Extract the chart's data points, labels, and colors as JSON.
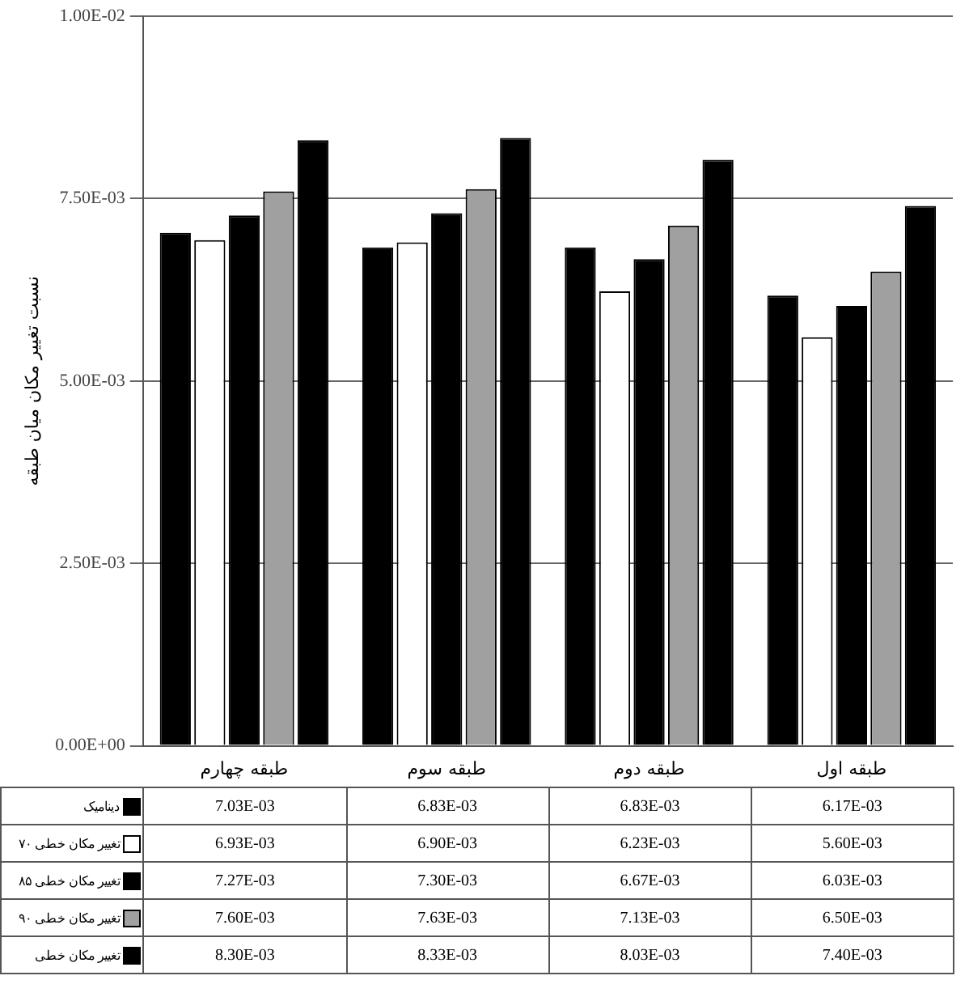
{
  "chart_data": {
    "type": "bar",
    "ylabel": "نسبت تغییر مکان میان طبقه",
    "categories": [
      "طبقه چهارم",
      "طبقه سوم",
      "طبقه دوم",
      "طبقه اول"
    ],
    "series": [
      {
        "name": "دینامیک",
        "color": "#000000",
        "values": [
          0.00703,
          0.00683,
          0.00683,
          0.00617
        ],
        "value_labels": [
          "7.03E-03",
          "6.83E-03",
          "6.83E-03",
          "6.17E-03"
        ]
      },
      {
        "name": "تغییر مکان خطی ۷۰",
        "color": "#ffffff",
        "values": [
          0.00693,
          0.0069,
          0.00623,
          0.0056
        ],
        "value_labels": [
          "6.93E-03",
          "6.90E-03",
          "6.23E-03",
          "5.60E-03"
        ]
      },
      {
        "name": "تغییر مکان خطی ۸۵",
        "color": "#000000",
        "values": [
          0.00727,
          0.0073,
          0.00667,
          0.00603
        ],
        "value_labels": [
          "7.27E-03",
          "7.30E-03",
          "6.67E-03",
          "6.03E-03"
        ]
      },
      {
        "name": "تغییر مکان خطی ۹۰",
        "color": "#a0a0a0",
        "values": [
          0.0076,
          0.00763,
          0.00713,
          0.0065
        ],
        "value_labels": [
          "7.60E-03",
          "7.63E-03",
          "7.13E-03",
          "6.50E-03"
        ]
      },
      {
        "name": "تغییر مکان خطی",
        "color": "#000000",
        "values": [
          0.0083,
          0.00833,
          0.00803,
          0.0074
        ],
        "value_labels": [
          "8.30E-03",
          "8.33E-03",
          "8.03E-03",
          "7.40E-03"
        ]
      }
    ],
    "ylim": [
      0,
      0.01
    ],
    "yticks": [
      {
        "value": 0,
        "label": "0.00E+00"
      },
      {
        "value": 0.0025,
        "label": "2.50E-03"
      },
      {
        "value": 0.005,
        "label": "5.00E-03"
      },
      {
        "value": 0.0075,
        "label": "7.50E-03"
      },
      {
        "value": 0.01,
        "label": "1.00E-02"
      }
    ],
    "grid": "y",
    "legend": "bottom"
  }
}
